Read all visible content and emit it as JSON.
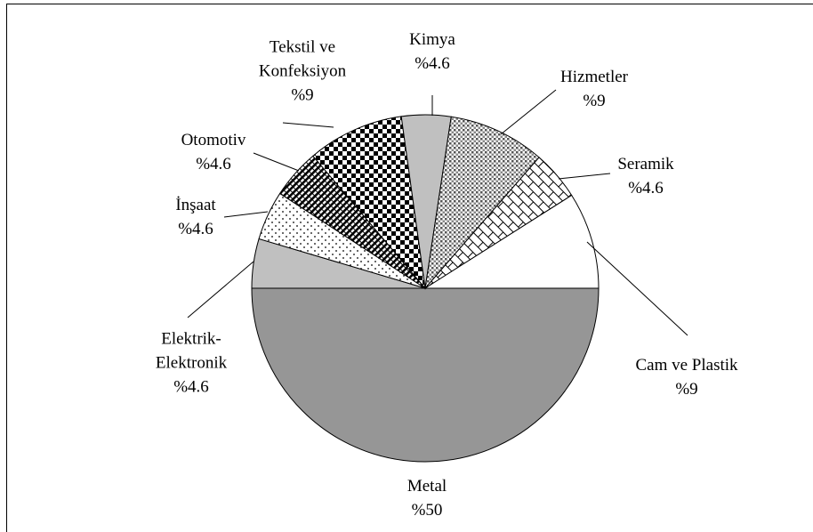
{
  "chart_data": {
    "type": "pie",
    "categories": [
      "Metal",
      "Elektrik-Elektronik",
      "İnşaat",
      "Otomotiv",
      "Tekstil ve Konfeksiyon",
      "Kimya",
      "Hizmetler",
      "Seramik",
      "Cam ve Plastik"
    ],
    "values": [
      50,
      4.6,
      4.6,
      4.6,
      9,
      4.6,
      9,
      4.6,
      9
    ],
    "value_labels": [
      "%50",
      "%4.6",
      "%4.6",
      "%4.6",
      "%9",
      "%4.6",
      "%9",
      "%4.6",
      "%9"
    ],
    "colors": [
      "#969696",
      "#c0c0c0",
      "#ffffff",
      "#ffffff",
      "#ffffff",
      "#c0c0c0",
      "#ffffff",
      "#ffffff",
      "#ffffff"
    ]
  }
}
